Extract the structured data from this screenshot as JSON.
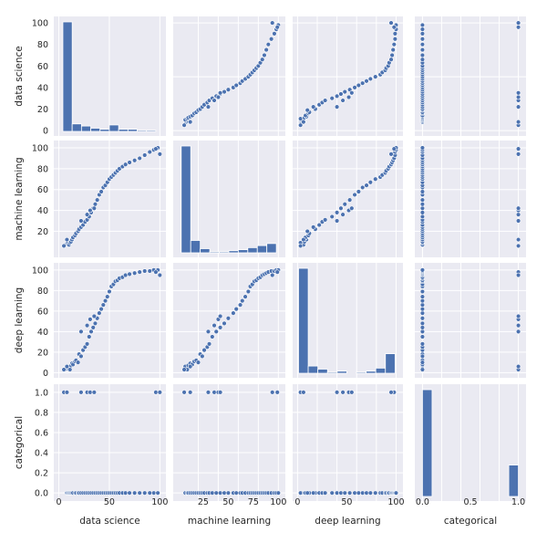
{
  "chart_data": {
    "type": "scatter",
    "kind": "pairplot",
    "variables": [
      "data science",
      "machine learning",
      "deep learning",
      "categorical"
    ],
    "axis_ranges": {
      "data science": [
        -5,
        106
      ],
      "machine learning": [
        -5,
        107
      ],
      "deep learning": [
        -5,
        107
      ],
      "categorical": [
        -0.08,
        1.08
      ]
    },
    "ticks": {
      "data science": [
        0,
        50,
        100
      ],
      "machine learning": [
        20,
        40,
        60,
        80,
        100
      ],
      "deep learning": [
        0,
        20,
        40,
        60,
        80,
        100
      ],
      "categorical": [
        0.0,
        0.2,
        0.4,
        0.6,
        0.8,
        1.0
      ]
    },
    "tick_labels": {
      "bottom": {
        "data science": [
          "0",
          "50",
          "100"
        ],
        "machine learning": [
          "25",
          "50",
          "75",
          "100"
        ],
        "deep learning": [
          "0",
          "50",
          "100"
        ],
        "categorical": [
          "0.0",
          "0.5",
          "1.0"
        ]
      },
      "left": {
        "data science": [
          "0",
          "20",
          "40",
          "60",
          "80",
          "100"
        ],
        "machine learning": [
          "20",
          "40",
          "60",
          "80",
          "100"
        ],
        "deep learning": [
          "0",
          "20",
          "40",
          "60",
          "80",
          "100"
        ],
        "categorical": [
          "0.0",
          "0.2",
          "0.4",
          "0.6",
          "0.8",
          "1.0"
        ]
      }
    },
    "histograms": {
      "data science": {
        "range": [
          4,
          96
        ],
        "counts": [
          102,
          7,
          5,
          3,
          2,
          6,
          2,
          2,
          1,
          1
        ]
      },
      "machine learning": {
        "range": [
          3,
          98
        ],
        "counts": [
          104,
          12,
          4,
          1,
          1,
          2,
          3,
          5,
          7,
          9
        ]
      },
      "deep learning": {
        "range": [
          1,
          99
        ],
        "counts": [
          102,
          7,
          4,
          1,
          2,
          0,
          1,
          2,
          5,
          19
        ]
      },
      "categorical": {
        "range": [
          0,
          1
        ],
        "counts": [
          102,
          0,
          0,
          0,
          0,
          0,
          0,
          0,
          0,
          30
        ]
      }
    },
    "points": [
      [
        8,
        8,
        4,
        0
      ],
      [
        9,
        9,
        5,
        0
      ],
      [
        10,
        7,
        6,
        0
      ],
      [
        11,
        9,
        3,
        0
      ],
      [
        12,
        10,
        7,
        0
      ],
      [
        13,
        12,
        9,
        0
      ],
      [
        14,
        14,
        8,
        0
      ],
      [
        16,
        16,
        11,
        0
      ],
      [
        17,
        18,
        12,
        0
      ],
      [
        19,
        20,
        10,
        0
      ],
      [
        20,
        22,
        18,
        0
      ],
      [
        22,
        24,
        16,
        0
      ],
      [
        24,
        26,
        22,
        0
      ],
      [
        26,
        29,
        25,
        0
      ],
      [
        28,
        31,
        28,
        0
      ],
      [
        30,
        34,
        35,
        0
      ],
      [
        32,
        38,
        40,
        0
      ],
      [
        34,
        42,
        44,
        0
      ],
      [
        36,
        46,
        48,
        0
      ],
      [
        38,
        50,
        53,
        0
      ],
      [
        40,
        55,
        58,
        0
      ],
      [
        42,
        58,
        62,
        0
      ],
      [
        44,
        62,
        66,
        0
      ],
      [
        46,
        64,
        70,
        0
      ],
      [
        48,
        67,
        74,
        0
      ],
      [
        50,
        70,
        79,
        0
      ],
      [
        52,
        72,
        84,
        0
      ],
      [
        54,
        74,
        86,
        0
      ],
      [
        56,
        76,
        89,
        0
      ],
      [
        58,
        78,
        90,
        0
      ],
      [
        60,
        80,
        92,
        0
      ],
      [
        63,
        82,
        93,
        0
      ],
      [
        66,
        84,
        95,
        0
      ],
      [
        70,
        86,
        96,
        0
      ],
      [
        75,
        88,
        97,
        0
      ],
      [
        80,
        90,
        98,
        0
      ],
      [
        85,
        93,
        99,
        0
      ],
      [
        90,
        96,
        99,
        0
      ],
      [
        94,
        98,
        100,
        0
      ],
      [
        98,
        100,
        100,
        0
      ],
      [
        5,
        6,
        3,
        1
      ],
      [
        8,
        12,
        6,
        1
      ],
      [
        22,
        30,
        40,
        1
      ],
      [
        28,
        36,
        46,
        1
      ],
      [
        31,
        40,
        52,
        1
      ],
      [
        35,
        42,
        55,
        1
      ],
      [
        96,
        99,
        98,
        1
      ],
      [
        100,
        94,
        95,
        1
      ]
    ]
  }
}
